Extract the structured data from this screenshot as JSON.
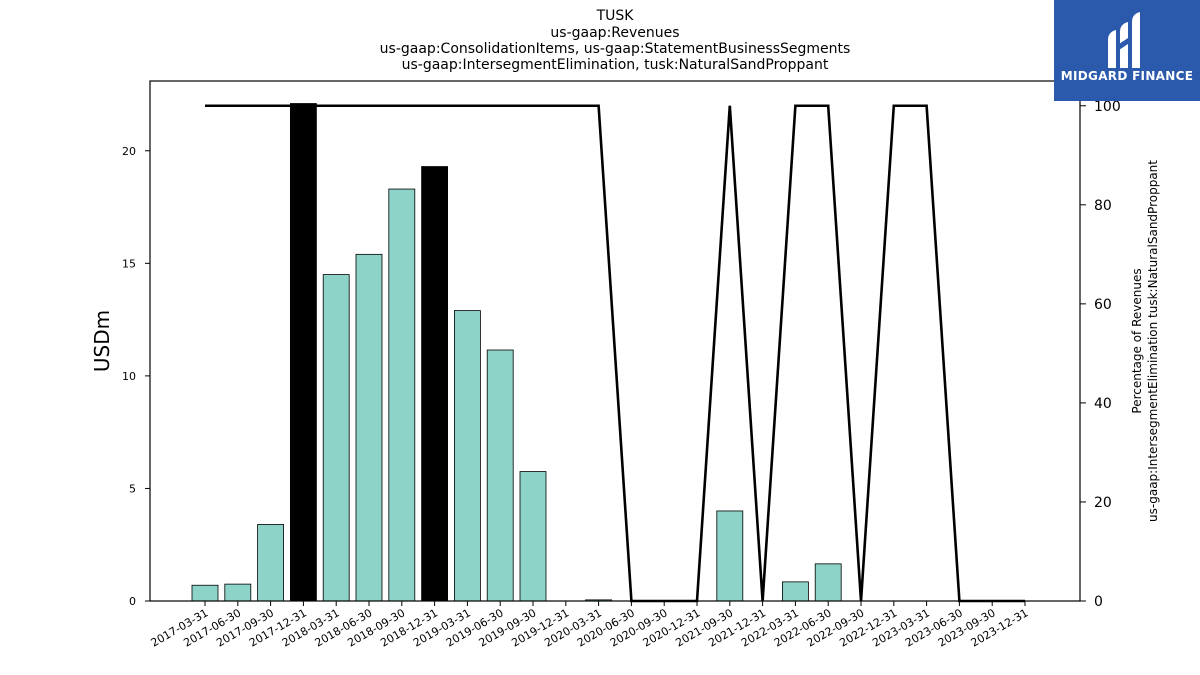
{
  "titles": [
    "TUSK",
    "us-gaap:Revenues",
    "us-gaap:ConsolidationItems, us-gaap:StatementBusinessSegments",
    "us-gaap:IntersegmentElimination, tusk:NaturalSandProppant"
  ],
  "logo": {
    "text": "MIDGARD FINANCE",
    "icon": "midgard-logo-icon"
  },
  "colors": {
    "bar": "#8dd3c7",
    "bar_highlight": "#000000",
    "line": "#000000",
    "logo_bg": "#2b5aad"
  },
  "chart_data": {
    "type": "bar",
    "categories": [
      "2017-03-31",
      "2017-06-30",
      "2017-09-30",
      "2017-12-31",
      "2018-03-31",
      "2018-06-30",
      "2018-09-30",
      "2018-12-31",
      "2019-03-31",
      "2019-06-30",
      "2019-09-30",
      "2019-12-31",
      "2020-03-31",
      "2020-06-30",
      "2020-09-30",
      "2020-12-31",
      "2021-09-30",
      "2021-12-31",
      "2022-03-31",
      "2022-06-30",
      "2022-09-30",
      "2022-12-31",
      "2023-03-31",
      "2023-06-30",
      "2023-09-30",
      "2023-12-31"
    ],
    "values": [
      0.7,
      0.75,
      3.4,
      22.1,
      14.5,
      15.4,
      18.3,
      19.3,
      12.9,
      11.15,
      5.75,
      0,
      0.05,
      0,
      0,
      0,
      4.0,
      0,
      0.85,
      1.65,
      0,
      0,
      0,
      0,
      0,
      0
    ],
    "highlight": [
      false,
      false,
      false,
      true,
      false,
      false,
      false,
      true,
      false,
      false,
      false,
      false,
      false,
      false,
      false,
      false,
      false,
      false,
      false,
      false,
      false,
      false,
      false,
      false,
      false,
      false
    ],
    "ylabel": "USDm",
    "ylim": [
      0,
      23.1
    ],
    "yticks": [
      0,
      5,
      10,
      15,
      20
    ],
    "secondary": {
      "type": "line",
      "ylabel": "Percentage of Revenues\nus-gaap:IntersegmentElimination tusk:NaturalSandProppant",
      "ylim": [
        0,
        105
      ],
      "yticks": [
        0,
        20,
        40,
        60,
        80,
        100
      ],
      "values": [
        100,
        100,
        100,
        100,
        100,
        100,
        100,
        100,
        100,
        100,
        100,
        100,
        100,
        0,
        0,
        0,
        100,
        0,
        100,
        100,
        0,
        100,
        100,
        0,
        0,
        0
      ]
    },
    "grid": false,
    "legend": "none"
  }
}
